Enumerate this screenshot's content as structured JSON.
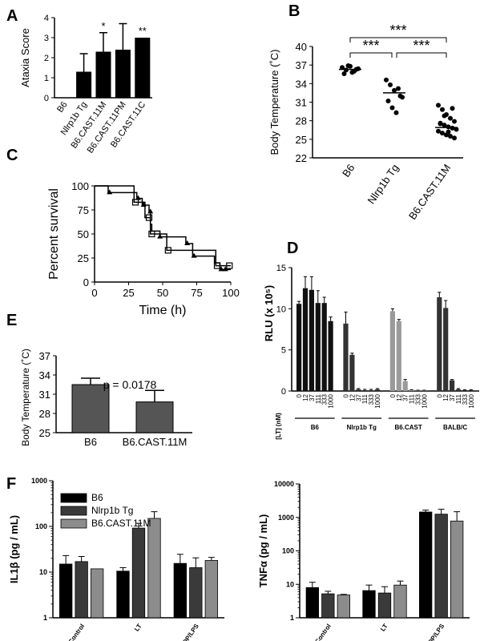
{
  "panels": {
    "A": "A",
    "B": "B",
    "C": "C",
    "D": "D",
    "E": "E",
    "F": "F"
  },
  "chart_data": [
    {
      "panel": "A",
      "type": "bar",
      "ylabel": "Ataxia Score",
      "ylim": [
        0,
        4
      ],
      "yticks": [
        "0",
        "1",
        "2",
        "3",
        "4"
      ],
      "categories": [
        "B6",
        "Nlrp1b Tg",
        "B6.CAST.11M",
        "B6.CAST.11PM",
        "B6.CAST.11C"
      ],
      "values": [
        0,
        1.3,
        2.3,
        2.4,
        3.0
      ],
      "errors": [
        0,
        0.9,
        0.95,
        1.3,
        0
      ],
      "annotations": [
        "",
        "",
        "*",
        "",
        "**"
      ],
      "color": "#000000"
    },
    {
      "panel": "B",
      "type": "scatter",
      "ylabel": "Body Temperature (˚C)",
      "ylim": [
        22,
        40
      ],
      "yticks": [
        "22",
        "25",
        "28",
        "31",
        "34",
        "37",
        "40"
      ],
      "categories": [
        "B6",
        "Nlrp1b Tg",
        "B6.CAST.11M"
      ],
      "means": [
        36.3,
        32.5,
        26.9
      ],
      "points": [
        [
          36.6,
          36.2,
          36.8,
          36.0,
          36.4,
          35.6,
          36.9,
          35.8,
          36.3
        ],
        [
          34.6,
          33.8,
          32.9,
          33.2,
          31.8,
          31.2,
          30.1,
          29.3,
          32.0
        ],
        [
          30.5,
          29.8,
          29.0,
          28.4,
          27.9,
          27.5,
          27.3,
          27.0,
          26.8,
          26.6,
          26.3,
          26.0,
          25.7,
          25.5,
          25.2,
          27.6,
          28.8,
          26.2,
          30.0
        ]
      ],
      "significance": [
        "***",
        "***",
        "***"
      ]
    },
    {
      "panel": "C",
      "type": "line",
      "xlabel": "Time (h)",
      "ylabel": "Percent survival",
      "xlim": [
        0,
        100
      ],
      "ylim": [
        0,
        100
      ],
      "xticks": [
        "0",
        "25",
        "50",
        "75",
        "100"
      ],
      "yticks": [
        "0",
        "25",
        "50",
        "75",
        "100"
      ],
      "series": [
        {
          "marker": "square",
          "points": [
            [
              0,
              100
            ],
            [
              29,
              100
            ],
            [
              29,
              83
            ],
            [
              37,
              83
            ],
            [
              37,
              67
            ],
            [
              41,
              67
            ],
            [
              41,
              50
            ],
            [
              53,
              50
            ],
            [
              53,
              33
            ],
            [
              89,
              33
            ],
            [
              89,
              17
            ],
            [
              100,
              17
            ]
          ],
          "markers": [
            [
              30,
              83
            ],
            [
              40,
              67
            ],
            [
              42,
              50
            ],
            [
              54,
              33
            ],
            [
              90,
              17
            ],
            [
              99,
              17
            ]
          ]
        },
        {
          "marker": "triangle",
          "points": [
            [
              0,
              100
            ],
            [
              10,
              100
            ],
            [
              10,
              93
            ],
            [
              31,
              93
            ],
            [
              31,
              87
            ],
            [
              35,
              87
            ],
            [
              35,
              80
            ],
            [
              40,
              80
            ],
            [
              40,
              73
            ],
            [
              41,
              73
            ],
            [
              41,
              60
            ],
            [
              42,
              60
            ],
            [
              42,
              53
            ],
            [
              48,
              53
            ],
            [
              48,
              47
            ],
            [
              67,
              47
            ],
            [
              67,
              40
            ],
            [
              72,
              40
            ],
            [
              72,
              27
            ],
            [
              88,
              27
            ],
            [
              88,
              20
            ],
            [
              92,
              20
            ],
            [
              92,
              13
            ],
            [
              100,
              13
            ]
          ],
          "markers": [
            [
              11,
              93
            ],
            [
              32,
              87
            ],
            [
              36,
              80
            ],
            [
              41,
              73
            ],
            [
              48,
              47
            ],
            [
              68,
              40
            ],
            [
              73,
              27
            ],
            [
              93,
              13
            ],
            [
              96,
              13
            ]
          ]
        }
      ]
    },
    {
      "panel": "D",
      "type": "bar",
      "ylabel": "RLU (x 10⁵)",
      "xlabel": "[LT] (nM)",
      "ylim": [
        0,
        15
      ],
      "yticks": [
        "0",
        "5",
        "10",
        "15"
      ],
      "dose_labels": [
        "0",
        "12",
        "37",
        "111",
        "333",
        "1000"
      ],
      "groups": [
        {
          "name": "B6",
          "color": "#111111",
          "values": [
            10.6,
            12.5,
            12.3,
            10.7,
            10.7,
            8.5
          ],
          "errors": [
            0.3,
            1.4,
            1.6,
            1.5,
            0.7,
            0.5
          ]
        },
        {
          "name": "Nlrp1b Tg",
          "color": "#333333",
          "values": [
            8.2,
            4.4,
            0.2,
            0.1,
            0.1,
            0.2
          ],
          "errors": [
            1.4,
            0.2,
            0.1,
            0.1,
            0.1,
            0.1
          ]
        },
        {
          "name": "B6.CAST",
          "color": "#9a9a9a",
          "values": [
            9.7,
            8.5,
            1.2,
            0.1,
            0.05,
            0.05
          ],
          "errors": [
            0.3,
            0.2,
            0.2,
            0.05,
            0.05,
            0.05
          ]
        },
        {
          "name": "BALB/C",
          "color": "#333333",
          "values": [
            11.4,
            10.1,
            1.3,
            0.2,
            0.1,
            0.1
          ],
          "errors": [
            0.6,
            0.9,
            0.1,
            0.1,
            0.05,
            0.05
          ]
        }
      ]
    },
    {
      "panel": "E",
      "type": "bar",
      "ylabel": "Body Temperature (˚C)",
      "ylim": [
        25,
        37
      ],
      "yticks": [
        "25",
        "28",
        "31",
        "34",
        "37"
      ],
      "categories": [
        "B6",
        "B6.CAST.11M"
      ],
      "values": [
        32.5,
        29.8
      ],
      "errors": [
        1.0,
        1.8
      ],
      "annotation": "p = 0.0178",
      "color": "#555555"
    },
    {
      "panel": "F-left",
      "type": "bar",
      "ylabel": "IL1β (pg / mL)",
      "scale": "log",
      "ylim": [
        1,
        1000
      ],
      "yticks": [
        "1",
        "10",
        "100",
        "1000"
      ],
      "categories": [
        "Control",
        "LT",
        "MDP/LPS"
      ],
      "series": [
        {
          "name": "B6",
          "color": "#000000",
          "values": [
            15,
            10.5,
            15.5
          ],
          "errors": [
            8,
            2,
            9
          ]
        },
        {
          "name": "Nlrp1b Tg",
          "color": "#3a3a3a",
          "values": [
            17,
            92,
            12.5
          ],
          "errors": [
            5,
            25,
            8
          ]
        },
        {
          "name": "B6.CAST.11M",
          "color": "#8c8c8c",
          "values": [
            11.8,
            150,
            18
          ],
          "errors": [
            0,
            60,
            3
          ]
        }
      ]
    },
    {
      "panel": "F-right",
      "type": "bar",
      "ylabel": "TNFα (pg / mL)",
      "scale": "log",
      "ylim": [
        1,
        10000
      ],
      "yticks": [
        "1",
        "10",
        "100",
        "1000",
        "10000"
      ],
      "categories": [
        "Control",
        "LT",
        "MDP/LPS"
      ],
      "series": [
        {
          "name": "B6",
          "color": "#000000",
          "values": [
            8,
            6.5,
            1450
          ],
          "errors": [
            3.5,
            3,
            200
          ]
        },
        {
          "name": "Nlrp1b Tg",
          "color": "#3a3a3a",
          "values": [
            5.2,
            5.5,
            1250
          ],
          "errors": [
            1,
            3,
            500
          ]
        },
        {
          "name": "B6.CAST.11M",
          "color": "#8c8c8c",
          "values": [
            4.8,
            9.5,
            780
          ],
          "errors": [
            0.2,
            3,
            700
          ]
        }
      ]
    }
  ]
}
